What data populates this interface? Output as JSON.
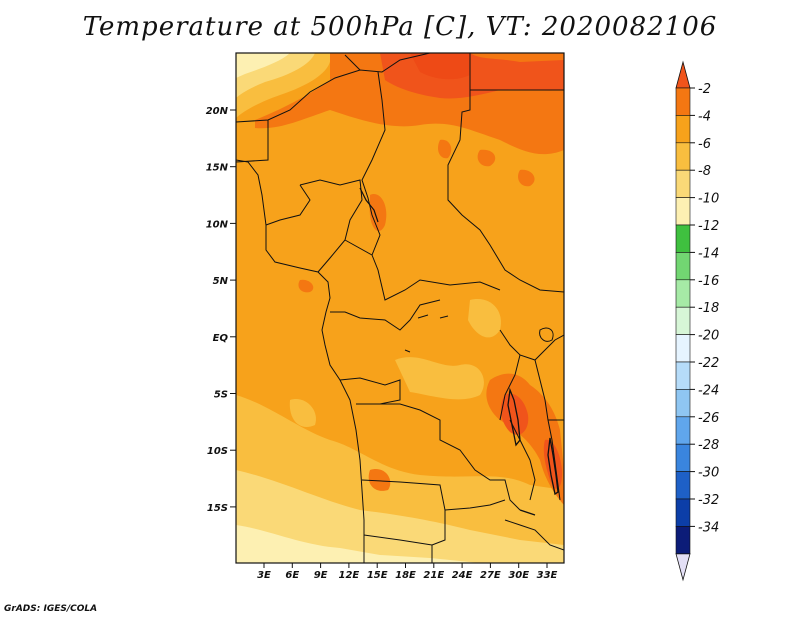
{
  "title": "Temperature at 500hPa [C], VT: 2020082106",
  "credit": "GrADS: IGES/COLA",
  "map": {
    "lat_ticks": [
      "20N",
      "15N",
      "10N",
      "5N",
      "EQ",
      "5S",
      "10S",
      "15S"
    ],
    "lon_ticks": [
      "3E",
      "6E",
      "9E",
      "12E",
      "15E",
      "18E",
      "21E",
      "24E",
      "27E",
      "30E",
      "33E"
    ]
  },
  "colorbar": {
    "labels": [
      "-2",
      "-4",
      "-6",
      "-8",
      "-10",
      "-12",
      "-14",
      "-16",
      "-18",
      "-20",
      "-22",
      "-24",
      "-26",
      "-28",
      "-30",
      "-32",
      "-34"
    ],
    "colors": [
      "#f0541b",
      "#f47712",
      "#f7a21b",
      "#f9be3f",
      "#fad977",
      "#fdf0b2",
      "#3fc03f",
      "#72d672",
      "#a6eaa6",
      "#d7f6d7",
      "#e6f4ff",
      "#b6dcf9",
      "#8fc6f2",
      "#60a6ec",
      "#3a85de",
      "#1e60c7",
      "#0c3ea8",
      "#0c1c78",
      "#e4e0f6"
    ]
  },
  "colors": {
    "deep_orange": "#f0541b",
    "orange": "#f47712",
    "main": "#f7a21b",
    "light": "#f9be3f",
    "pale": "#fad977",
    "palest": "#fdf0b2"
  }
}
